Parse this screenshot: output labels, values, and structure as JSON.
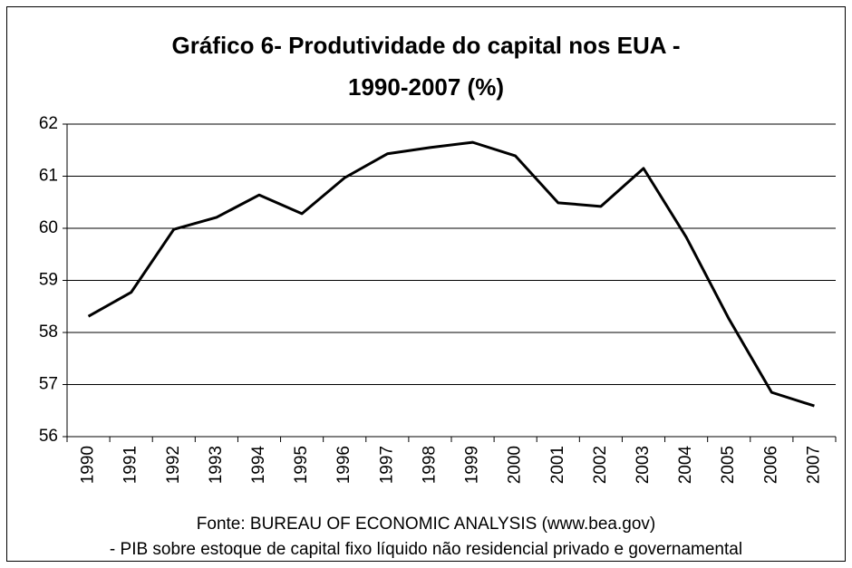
{
  "chart_data": {
    "type": "line",
    "title": [
      "Gráfico 6- Produtividade do capital nos EUA -",
      "1990-2007 (%)"
    ],
    "categories": [
      "1990",
      "1991",
      "1992",
      "1993",
      "1994",
      "1995",
      "1996",
      "1997",
      "1998",
      "1999",
      "2000",
      "2001",
      "2002",
      "2003",
      "2004",
      "2005",
      "2006",
      "2007"
    ],
    "values": [
      58.31,
      58.77,
      59.98,
      60.21,
      60.64,
      60.28,
      60.97,
      61.43,
      61.55,
      61.65,
      61.39,
      60.49,
      60.42,
      61.15,
      59.83,
      58.26,
      56.85,
      56.59
    ],
    "color": "#000000",
    "ylim": [
      56,
      62
    ],
    "yticks": [
      56,
      57,
      58,
      59,
      60,
      61,
      62
    ],
    "grid": true,
    "notes": [
      "Fonte: BUREAU OF ECONOMIC ANALYSIS (www.bea.gov)",
      "- PIB sobre estoque de capital fixo líquido não residencial privado e governamental"
    ]
  }
}
